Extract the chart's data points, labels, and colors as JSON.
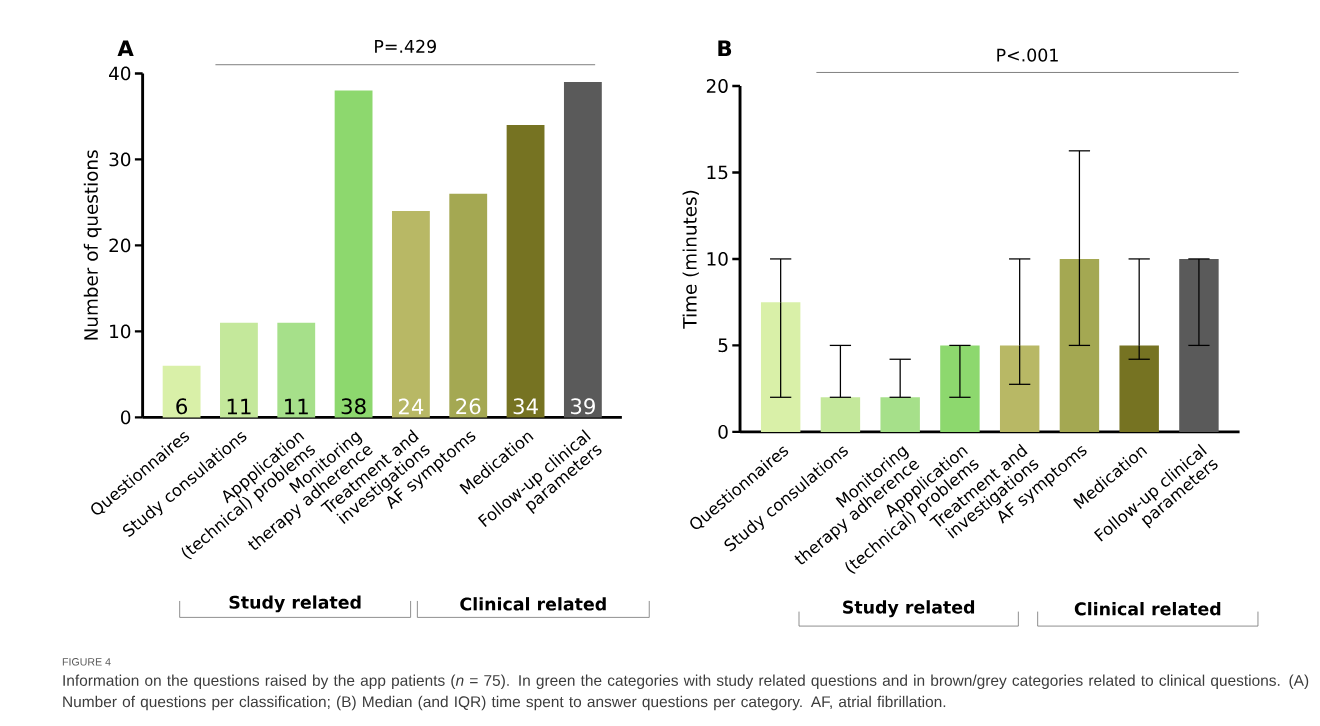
{
  "chart_data": [
    {
      "type": "bar",
      "title": "A",
      "ylabel": "Number of questions",
      "categories": [
        "Questionnaires",
        "Study consulations",
        "Appplication (technical) problems",
        "Monitoring therapy adherence",
        "Treatment and investigations",
        "AF symptoms",
        "Medication",
        "Follow-up clinical parameters"
      ],
      "values": [
        6,
        11,
        11,
        38,
        24,
        26,
        34,
        39
      ],
      "value_labels": [
        "6",
        "11",
        "11",
        "38",
        "24",
        "26",
        "34",
        "39"
      ],
      "colors": [
        "#d9f0a8",
        "#c4e89b",
        "#a6e08a",
        "#8dd86e",
        "#b8b865",
        "#a4a852",
        "#767322",
        "#5a5a5a"
      ],
      "ylim": [
        0,
        40
      ],
      "yticks": [
        0,
        10,
        20,
        30,
        40
      ],
      "annotations": [
        "P=.429",
        "Study related",
        "Clinical related",
        "FIGURE 4",
        "Information on the questions raised by the app patients (*n* = 75). In green the categories with study related questions and in brown/grey categories related to clinical questions. (A) Number of questions per classification; (B) Median (and IQR) time spent to answer questions per category. AF, atrial fibrillation."
      ]
    },
    {
      "type": "bar",
      "title": "B",
      "ylabel": "Time (minutes)",
      "categories": [
        "Questionnaires",
        "Study consulations",
        "Monitoring therapy adherence",
        "Appplication (technical) problems",
        "Treatment and investigations",
        "AF symptoms",
        "Medication",
        "Follow-up clinical parameters"
      ],
      "values": [
        7.5,
        2,
        2,
        5,
        5,
        10,
        5,
        10
      ],
      "errors": [
        [
          2,
          10
        ],
        [
          2,
          5
        ],
        [
          2,
          4.2
        ],
        [
          2,
          5
        ],
        [
          2.75,
          10
        ],
        [
          5,
          16.25
        ],
        [
          4.2,
          10
        ],
        [
          5,
          10
        ]
      ],
      "colors": [
        "#d9f0a8",
        "#c4e89b",
        "#a6e08a",
        "#8dd86e",
        "#b8b865",
        "#a4a852",
        "#767322",
        "#5a5a5a"
      ],
      "ylim": [
        0,
        20
      ],
      "yticks": [
        0,
        5,
        10,
        15,
        20
      ],
      "annotations": [
        "P<.001",
        "Study related",
        "Clinical related"
      ]
    }
  ]
}
